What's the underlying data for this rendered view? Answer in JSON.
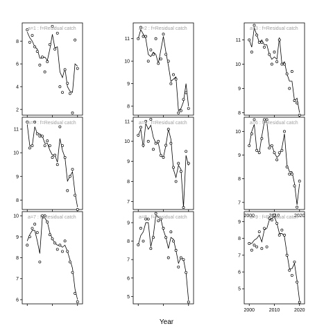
{
  "chart_data": {
    "type": "scatter",
    "xlabel": "Year",
    "ylabel": "",
    "grid": false,
    "colors": {
      "points": "#000000",
      "line": "#000000",
      "label": "#a0a0a0"
    },
    "panels": [
      {
        "label": "a=1  :  f=Residual catch",
        "ylim": [
          1.5,
          9.6
        ],
        "yticks": [
          2,
          4,
          6,
          8
        ],
        "xlim": [
          1998,
          2022
        ],
        "xticks": [
          2000,
          2010,
          2020
        ],
        "xticklabels_shown": false,
        "x": [
          2000,
          2001,
          2002,
          2003,
          2004,
          2005,
          2006,
          2007,
          2008,
          2009,
          2010,
          2011,
          2012,
          2013,
          2014,
          2015,
          2016,
          2017,
          2018,
          2019,
          2020
        ],
        "y_points": [
          9.0,
          7.9,
          8.5,
          7.5,
          7.1,
          5.9,
          6.6,
          5.3,
          6.2,
          7.7,
          9.3,
          7.3,
          8.7,
          4.0,
          3.5,
          5.5,
          4.3,
          3.4,
          1.7,
          8.1,
          5.6
        ],
        "y_line": [
          8.8,
          8.3,
          8.0,
          7.5,
          7.3,
          6.5,
          6.5,
          6.6,
          6.3,
          7.3,
          8.6,
          7.4,
          7.5,
          5.3,
          4.8,
          5.6,
          4.0,
          3.6,
          3.5,
          6.0,
          5.8
        ]
      },
      {
        "label": "a=4  :  f=Residual catch",
        "ylim": [
          7.6,
          11.5
        ],
        "yticks": [
          8,
          9,
          10,
          11
        ],
        "xlim": [
          1998,
          2022
        ],
        "xticks": [
          2000,
          2010,
          2020
        ],
        "xticklabels_shown": false,
        "x": [
          2000,
          2001,
          2002,
          2003,
          2004,
          2005,
          2006,
          2007,
          2008,
          2009,
          2010,
          2011,
          2012,
          2013,
          2014,
          2015,
          2016,
          2017,
          2018,
          2019,
          2020
        ],
        "y_points": [
          11.3,
          10.2,
          10.3,
          11.3,
          10.8,
          10.7,
          10.7,
          10.3,
          10.5,
          10.3,
          9.8,
          9.9,
          9.5,
          11.1,
          10.3,
          9.8,
          8.4,
          9.0,
          9.3,
          8.2,
          7.6
        ],
        "y_line": [
          11.2,
          10.3,
          10.3,
          11.1,
          10.8,
          10.8,
          10.7,
          10.4,
          10.4,
          10.1,
          9.9,
          9.9,
          9.6,
          10.6,
          10.1,
          9.8,
          8.8,
          9.0,
          9.2,
          8.3,
          7.7
        ]
      },
      {
        "label": "a=7  :  f=Residual catch",
        "ylim": [
          5.8,
          10.2
        ],
        "yticks": [
          6,
          7,
          8,
          9,
          10
        ],
        "xlim": [
          1998,
          2022
        ],
        "xticks": [
          2000,
          2010,
          2020
        ],
        "xticklabels_shown": false,
        "x": [
          2000,
          2001,
          2002,
          2003,
          2004,
          2005,
          2006,
          2007,
          2008,
          2009,
          2010,
          2011,
          2012,
          2013,
          2014,
          2015,
          2016,
          2017,
          2018,
          2019,
          2020
        ],
        "y_points": [
          8.6,
          9.0,
          9.4,
          9.6,
          9.2,
          7.8,
          10.0,
          10.0,
          9.7,
          9.1,
          8.9,
          8.7,
          8.4,
          8.6,
          8.3,
          8.8,
          8.3,
          7.8,
          7.3,
          6.3,
          5.9
        ],
        "y_line": [
          8.8,
          9.1,
          9.3,
          9.3,
          8.8,
          8.2,
          9.9,
          9.9,
          9.7,
          9.2,
          8.9,
          8.7,
          8.6,
          8.6,
          8.5,
          8.6,
          8.3,
          7.9,
          7.5,
          6.5,
          6.0
        ]
      },
      {
        "label": "a=2  :  f=Residual catch",
        "ylim": [
          7.6,
          11.7
        ],
        "yticks": [
          8,
          9,
          10,
          11
        ],
        "xlim": [
          1998,
          2022
        ],
        "xticks": [
          2000,
          2010,
          2020
        ],
        "xticklabels_shown": false,
        "x": [
          2000,
          2001,
          2002,
          2003,
          2004,
          2005,
          2006,
          2007,
          2008,
          2009,
          2010,
          2011,
          2012,
          2013,
          2014,
          2015,
          2016,
          2017,
          2018,
          2019,
          2020
        ],
        "y_points": [
          11.0,
          11.5,
          11.1,
          11.1,
          10.0,
          10.5,
          10.3,
          11.0,
          9.9,
          10.1,
          11.2,
          10.3,
          10.0,
          9.0,
          9.4,
          9.2,
          7.7,
          7.8,
          8.3,
          8.6,
          7.9
        ],
        "y_line": [
          11.0,
          11.4,
          11.2,
          11.0,
          10.3,
          10.2,
          10.4,
          10.3,
          9.9,
          10.5,
          11.1,
          10.4,
          9.8,
          9.1,
          9.2,
          9.3,
          7.8,
          7.9,
          8.2,
          9.0,
          8.0
        ]
      },
      {
        "label": "a=5  :  f=Residual catch",
        "ylim": [
          6.6,
          11.2
        ],
        "yticks": [
          7,
          8,
          9,
          10,
          11
        ],
        "xlim": [
          1998,
          2022
        ],
        "xticks": [
          2000,
          2010,
          2020
        ],
        "xticklabels_shown": false,
        "x": [
          2000,
          2001,
          2002,
          2003,
          2004,
          2005,
          2006,
          2007,
          2008,
          2009,
          2010,
          2011,
          2012,
          2013,
          2014,
          2015,
          2016,
          2017,
          2018,
          2019,
          2020
        ],
        "y_points": [
          10.3,
          10.7,
          9.8,
          11.0,
          10.0,
          11.1,
          9.6,
          9.9,
          10.0,
          9.3,
          9.2,
          9.8,
          10.6,
          9.9,
          8.7,
          8.0,
          8.9,
          8.5,
          6.7,
          9.5,
          8.9
        ],
        "y_line": [
          10.3,
          10.6,
          9.7,
          10.9,
          10.6,
          10.8,
          10.2,
          9.9,
          9.9,
          9.3,
          9.2,
          9.8,
          10.6,
          10.1,
          8.6,
          8.2,
          8.8,
          8.6,
          6.7,
          9.3,
          8.8
        ]
      },
      {
        "label": "a=8  :  f=Residual catch",
        "ylim": [
          4.6,
          9.6
        ],
        "yticks": [
          5,
          6,
          7,
          8,
          9
        ],
        "xlim": [
          1998,
          2022
        ],
        "xticks": [
          2000,
          2010,
          2020
        ],
        "xticklabels_shown": false,
        "x": [
          2000,
          2001,
          2002,
          2003,
          2004,
          2005,
          2006,
          2007,
          2008,
          2009,
          2010,
          2011,
          2012,
          2013,
          2014,
          2015,
          2016,
          2017,
          2018,
          2019,
          2020
        ],
        "y_points": [
          7.8,
          8.7,
          8.0,
          9.2,
          9.2,
          7.6,
          8.2,
          9.5,
          9.1,
          9.2,
          8.7,
          8.2,
          7.1,
          8.5,
          8.0,
          7.5,
          6.6,
          7.1,
          7.0,
          6.3,
          4.7
        ],
        "y_line": [
          7.8,
          8.3,
          8.5,
          9.0,
          9.0,
          7.7,
          8.3,
          9.4,
          9.3,
          9.2,
          8.6,
          8.2,
          7.6,
          8.2,
          8.1,
          7.5,
          6.8,
          7.1,
          7.0,
          6.3,
          4.8
        ]
      },
      {
        "label": "a=3  :  f=Residual catch",
        "ylim": [
          7.9,
          11.7
        ],
        "yticks": [
          8,
          9,
          10,
          11
        ],
        "xlim": [
          1998,
          2022
        ],
        "xticks": [
          2000,
          2010,
          2020
        ],
        "xticklabels_shown": false,
        "x": [
          2000,
          2001,
          2002,
          2003,
          2004,
          2005,
          2006,
          2007,
          2008,
          2009,
          2010,
          2011,
          2012,
          2013,
          2014,
          2015,
          2016,
          2017,
          2018,
          2019,
          2020
        ],
        "y_points": [
          11.0,
          10.5,
          11.6,
          11.2,
          10.9,
          10.9,
          10.7,
          11.0,
          10.4,
          10.0,
          10.5,
          10.1,
          11.0,
          10.0,
          10.0,
          9.6,
          9.0,
          9.7,
          8.5,
          8.4,
          7.9
        ],
        "y_line": [
          11.0,
          10.7,
          11.5,
          11.2,
          10.9,
          11.0,
          10.8,
          10.8,
          10.4,
          10.2,
          10.3,
          10.2,
          11.1,
          10.0,
          10.1,
          9.6,
          9.3,
          9.3,
          8.5,
          8.6,
          8.0
        ]
      },
      {
        "label": "a=6  :  f=Residual catch",
        "ylim": [
          6.7,
          10.6
        ],
        "yticks": [
          7,
          8,
          9,
          10
        ],
        "xlim": [
          1998,
          2022
        ],
        "xticks": [
          2000,
          2010,
          2020
        ],
        "xticklabels_shown": true,
        "x": [
          2000,
          2001,
          2002,
          2003,
          2004,
          2005,
          2006,
          2007,
          2008,
          2009,
          2010,
          2011,
          2012,
          2013,
          2014,
          2015,
          2016,
          2017,
          2018,
          2019,
          2020
        ],
        "y_points": [
          9.4,
          9.9,
          10.5,
          9.2,
          9.1,
          9.7,
          10.5,
          10.5,
          9.3,
          9.4,
          9.1,
          8.8,
          9.1,
          9.2,
          10.0,
          8.5,
          8.2,
          8.2,
          7.7,
          6.8,
          7.9
        ],
        "y_line": [
          9.4,
          10.0,
          10.3,
          9.2,
          9.1,
          9.8,
          10.4,
          10.4,
          9.4,
          9.4,
          9.1,
          8.9,
          9.0,
          9.3,
          9.9,
          8.6,
          8.3,
          8.3,
          7.8,
          6.9,
          7.8
        ]
      },
      {
        "label": "a=9  :  f=Residual catch",
        "ylim": [
          4.1,
          9.6
        ],
        "yticks": [
          5,
          6,
          7,
          8,
          9
        ],
        "xlim": [
          1998,
          2022
        ],
        "xticks": [
          2000,
          2010,
          2020
        ],
        "xticklabels_shown": true,
        "x": [
          2000,
          2001,
          2002,
          2003,
          2004,
          2005,
          2006,
          2007,
          2008,
          2009,
          2010,
          2011,
          2012,
          2013,
          2014,
          2015,
          2016,
          2017,
          2018,
          2019,
          2020
        ],
        "y_points": [
          7.7,
          7.3,
          7.6,
          7.5,
          8.4,
          7.4,
          8.6,
          7.5,
          9.2,
          9.1,
          9.4,
          8.9,
          8.2,
          8.5,
          8.2,
          7.0,
          6.1,
          5.8,
          6.6,
          5.4,
          4.2
        ],
        "y_line": [
          7.7,
          7.7,
          7.9,
          8.0,
          8.2,
          7.8,
          8.5,
          8.6,
          9.1,
          9.2,
          9.3,
          8.9,
          8.3,
          8.3,
          8.1,
          7.1,
          6.2,
          6.2,
          6.5,
          5.5,
          4.3
        ]
      }
    ]
  }
}
